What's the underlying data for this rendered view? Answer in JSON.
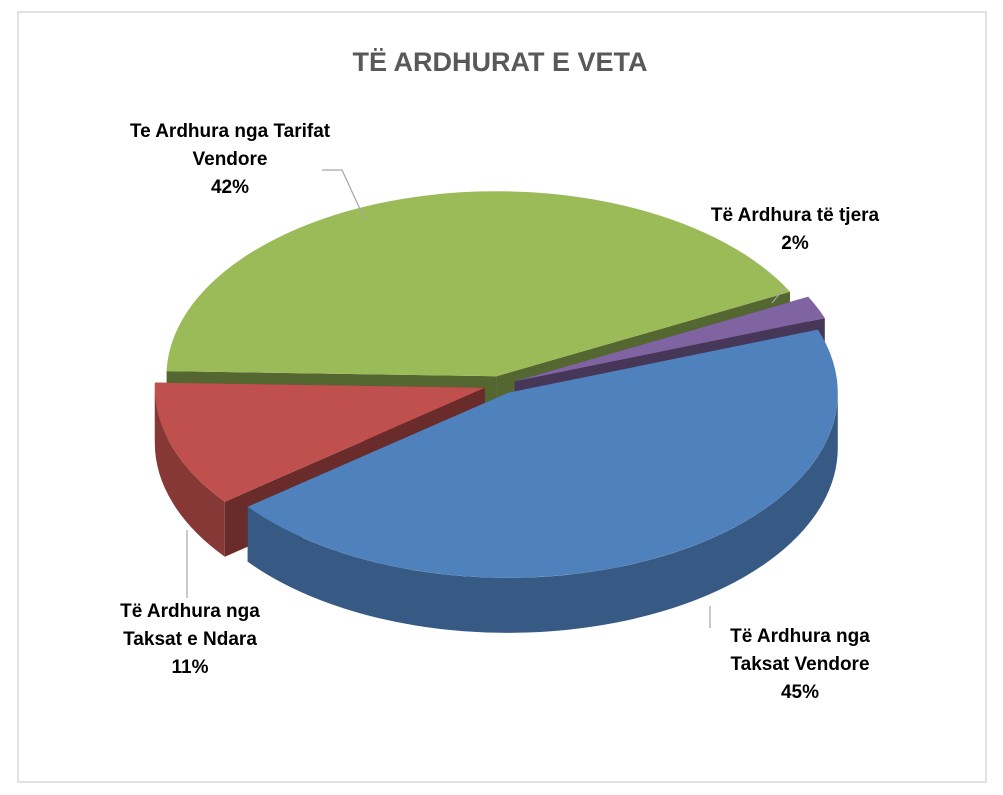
{
  "chart_data": {
    "type": "pie",
    "title": "TË ARDHURAT E VETA",
    "categories": [
      "Të Ardhura nga Taksat Vendore",
      "Të Ardhura nga Taksat e Ndara",
      "Te Ardhura nga Tarifat Vendore",
      "Të Ardhura të tjera"
    ],
    "values": [
      45,
      11,
      42,
      2
    ],
    "value_labels": [
      "45%",
      "11%",
      "42%",
      "2%"
    ],
    "colors": [
      "#4f81bd",
      "#c0504d",
      "#9bbb59",
      "#8064a2"
    ]
  }
}
